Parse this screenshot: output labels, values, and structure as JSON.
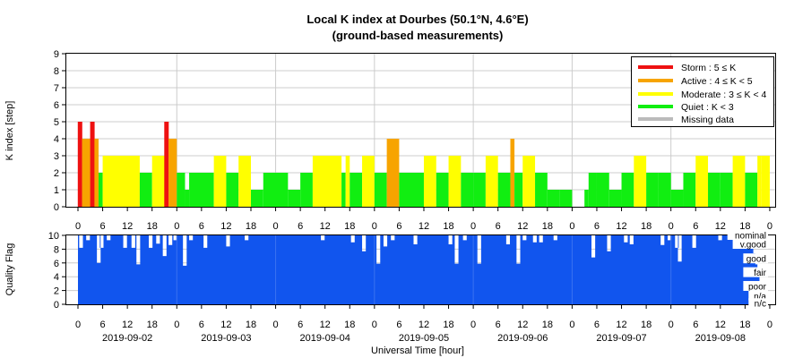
{
  "chart_data": [
    {
      "type": "bar",
      "title": "Local K index at Dourbes (50.1°N, 4.6°E)",
      "subtitle": "(ground-based measurements)",
      "ylabel": "K index [step]",
      "ylim": [
        0,
        9
      ],
      "yticks": [
        0,
        1,
        2,
        3,
        4,
        5,
        6,
        7,
        8,
        9
      ],
      "x_start": "2019-09-02 00:00",
      "x_hours": 168,
      "grid": true,
      "legend_position": "top-right",
      "legend": [
        {
          "label": "Storm : 5 ≤ K",
          "color": "#ee1111"
        },
        {
          "label": "Active : 4 ≤ K < 5",
          "color": "#f7a400"
        },
        {
          "label": "Moderate : 3 ≤ K < 4",
          "color": "#ffff00"
        },
        {
          "label": "Quiet : K < 3",
          "color": "#11ee11"
        },
        {
          "label": "Missing data",
          "color": "#bbbbbb"
        }
      ],
      "colors": {
        "storm": "#ee1111",
        "active": "#f7a400",
        "moderate": "#ffff00",
        "quiet": "#11ee11"
      },
      "bars": [
        {
          "start": 0,
          "end": 1,
          "k": 5
        },
        {
          "start": 1,
          "end": 3,
          "k": 4
        },
        {
          "start": 3,
          "end": 4,
          "k": 5
        },
        {
          "start": 4,
          "end": 5,
          "k": 4
        },
        {
          "start": 5,
          "end": 6,
          "k": 2
        },
        {
          "start": 6,
          "end": 15,
          "k": 3
        },
        {
          "start": 15,
          "end": 18,
          "k": 2
        },
        {
          "start": 18,
          "end": 21,
          "k": 3
        },
        {
          "start": 21,
          "end": 22,
          "k": 5
        },
        {
          "start": 22,
          "end": 24,
          "k": 4
        },
        {
          "start": 24,
          "end": 26,
          "k": 2
        },
        {
          "start": 26,
          "end": 27,
          "k": 1
        },
        {
          "start": 27,
          "end": 33,
          "k": 2
        },
        {
          "start": 33,
          "end": 36,
          "k": 3
        },
        {
          "start": 36,
          "end": 39,
          "k": 2
        },
        {
          "start": 39,
          "end": 42,
          "k": 3
        },
        {
          "start": 42,
          "end": 45,
          "k": 1
        },
        {
          "start": 45,
          "end": 51,
          "k": 2
        },
        {
          "start": 51,
          "end": 54,
          "k": 1
        },
        {
          "start": 54,
          "end": 57,
          "k": 2
        },
        {
          "start": 57,
          "end": 64,
          "k": 3
        },
        {
          "start": 64,
          "end": 65,
          "k": 2
        },
        {
          "start": 65,
          "end": 66,
          "k": 3
        },
        {
          "start": 66,
          "end": 69,
          "k": 2
        },
        {
          "start": 69,
          "end": 72,
          "k": 3
        },
        {
          "start": 72,
          "end": 75,
          "k": 2
        },
        {
          "start": 75,
          "end": 78,
          "k": 4
        },
        {
          "start": 78,
          "end": 84,
          "k": 2
        },
        {
          "start": 84,
          "end": 87,
          "k": 3
        },
        {
          "start": 87,
          "end": 90,
          "k": 2
        },
        {
          "start": 90,
          "end": 93,
          "k": 3
        },
        {
          "start": 93,
          "end": 96,
          "k": 2
        },
        {
          "start": 96,
          "end": 99,
          "k": 2
        },
        {
          "start": 99,
          "end": 102,
          "k": 3
        },
        {
          "start": 102,
          "end": 105,
          "k": 2
        },
        {
          "start": 105,
          "end": 106,
          "k": 4
        },
        {
          "start": 106,
          "end": 108,
          "k": 2
        },
        {
          "start": 108,
          "end": 111,
          "k": 3
        },
        {
          "start": 111,
          "end": 114,
          "k": 2
        },
        {
          "start": 114,
          "end": 117,
          "k": 1
        },
        {
          "start": 117,
          "end": 120,
          "k": 1
        },
        {
          "start": 120,
          "end": 123,
          "k": 0
        },
        {
          "start": 123,
          "end": 124,
          "k": 1
        },
        {
          "start": 124,
          "end": 126,
          "k": 2
        },
        {
          "start": 126,
          "end": 129,
          "k": 2
        },
        {
          "start": 129,
          "end": 132,
          "k": 1
        },
        {
          "start": 132,
          "end": 135,
          "k": 2
        },
        {
          "start": 135,
          "end": 138,
          "k": 3
        },
        {
          "start": 138,
          "end": 141,
          "k": 2
        },
        {
          "start": 141,
          "end": 144,
          "k": 2
        },
        {
          "start": 144,
          "end": 147,
          "k": 1
        },
        {
          "start": 147,
          "end": 150,
          "k": 2
        },
        {
          "start": 150,
          "end": 153,
          "k": 3
        },
        {
          "start": 153,
          "end": 156,
          "k": 2
        },
        {
          "start": 156,
          "end": 159,
          "k": 2
        },
        {
          "start": 159,
          "end": 162,
          "k": 3
        },
        {
          "start": 162,
          "end": 165,
          "k": 2
        },
        {
          "start": 165,
          "end": 166,
          "k": 3
        },
        {
          "start": 166,
          "end": 168,
          "k": 3
        }
      ]
    },
    {
      "type": "area",
      "ylabel": "Quality Flag",
      "ylim": [
        0,
        10
      ],
      "yticks": [
        0,
        2,
        4,
        6,
        8,
        10
      ],
      "xlabel": "Universal Time [hour]",
      "fill_color": "#1155ee",
      "grid": true,
      "hour_tick_labels": [
        "0",
        "6",
        "12",
        "18",
        "0",
        "6",
        "12",
        "18",
        "0",
        "6",
        "12",
        "18",
        "0",
        "6",
        "12",
        "18",
        "0",
        "6",
        "12",
        "18",
        "0",
        "6",
        "12",
        "18",
        "0",
        "6",
        "12",
        "18",
        "0"
      ],
      "date_labels": [
        "2019-09-02",
        "2019-09-03",
        "2019-09-04",
        "2019-09-05",
        "2019-09-06",
        "2019-09-07",
        "2019-09-08"
      ],
      "quality_levels": [
        {
          "label": "nominal",
          "y": 10
        },
        {
          "label": "v.good",
          "y": 8.7
        },
        {
          "label": "good",
          "y": 6.6
        },
        {
          "label": "fair",
          "y": 4.6
        },
        {
          "label": "poor",
          "y": 2.6
        },
        {
          "label": "n/a",
          "y": 1.2
        },
        {
          "label": "n/c",
          "y": 0.1
        }
      ],
      "dips": [
        {
          "h": 0.3,
          "v": 8.2
        },
        {
          "h": 2.0,
          "v": 9.3
        },
        {
          "h": 4.6,
          "v": 6.0
        },
        {
          "h": 5.3,
          "v": 8.2
        },
        {
          "h": 7.0,
          "v": 9.3
        },
        {
          "h": 11.0,
          "v": 8.2
        },
        {
          "h": 13.0,
          "v": 8.2
        },
        {
          "h": 14.2,
          "v": 5.8
        },
        {
          "h": 17.2,
          "v": 8.2
        },
        {
          "h": 19.0,
          "v": 8.8
        },
        {
          "h": 20.6,
          "v": 7.0
        },
        {
          "h": 22.0,
          "v": 8.6
        },
        {
          "h": 23.2,
          "v": 9.3
        },
        {
          "h": 25.5,
          "v": 5.6
        },
        {
          "h": 27.0,
          "v": 9.3
        },
        {
          "h": 30.5,
          "v": 8.2
        },
        {
          "h": 36.0,
          "v": 8.4
        },
        {
          "h": 40.5,
          "v": 9.3
        },
        {
          "h": 59.0,
          "v": 9.3
        },
        {
          "h": 66.3,
          "v": 9.0
        },
        {
          "h": 69.0,
          "v": 7.7
        },
        {
          "h": 72.5,
          "v": 5.9
        },
        {
          "h": 74.2,
          "v": 8.4
        },
        {
          "h": 76.0,
          "v": 9.3
        },
        {
          "h": 81.5,
          "v": 8.7
        },
        {
          "h": 90.0,
          "v": 8.7
        },
        {
          "h": 91.5,
          "v": 5.9
        },
        {
          "h": 93.5,
          "v": 9.3
        },
        {
          "h": 97.0,
          "v": 5.9
        },
        {
          "h": 104.0,
          "v": 8.7
        },
        {
          "h": 106.5,
          "v": 5.9
        },
        {
          "h": 108.0,
          "v": 9.3
        },
        {
          "h": 110.5,
          "v": 9.0
        },
        {
          "h": 112.0,
          "v": 9.0
        },
        {
          "h": 115.5,
          "v": 9.3
        },
        {
          "h": 124.7,
          "v": 6.8
        },
        {
          "h": 128.5,
          "v": 7.7
        },
        {
          "h": 132.6,
          "v": 9.0
        },
        {
          "h": 134.0,
          "v": 8.7
        },
        {
          "h": 141.5,
          "v": 8.6
        },
        {
          "h": 143.2,
          "v": 9.3
        },
        {
          "h": 145.0,
          "v": 8.2
        },
        {
          "h": 145.7,
          "v": 6.2
        },
        {
          "h": 149.2,
          "v": 8.2
        },
        {
          "h": 155.5,
          "v": 9.3
        },
        {
          "h": 159.5,
          "v": 9.3
        }
      ],
      "end_dropoff": {
        "start": 163.5,
        "end": 166.0,
        "from": 9.0,
        "to": 1.0
      }
    }
  ]
}
